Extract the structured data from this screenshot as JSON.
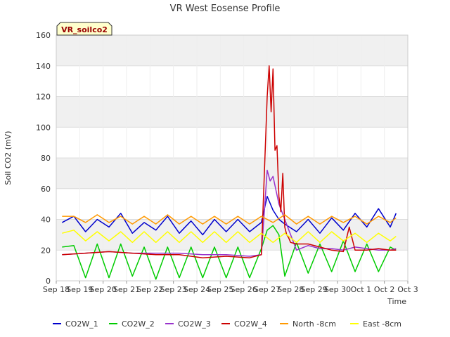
{
  "chart_data": {
    "type": "line",
    "title": "VR West Eosense Profile",
    "xlabel": "Time",
    "ylabel": "Soil CO2 (mV)",
    "badge": "VR_soilco2",
    "ylim": [
      0,
      160
    ],
    "yticks": [
      0,
      20,
      40,
      60,
      80,
      100,
      120,
      140,
      160
    ],
    "xlim": [
      "2024-09-18",
      "2024-10-03"
    ],
    "xticks": [
      {
        "date": "2024-09-18",
        "label": "Sep 18"
      },
      {
        "date": "2024-09-19",
        "label": "Sep 19"
      },
      {
        "date": "2024-09-20",
        "label": "Sep 20"
      },
      {
        "date": "2024-09-21",
        "label": "Sep 21"
      },
      {
        "date": "2024-09-22",
        "label": "Sep 22"
      },
      {
        "date": "2024-09-23",
        "label": "Sep 23"
      },
      {
        "date": "2024-09-24",
        "label": "Sep 24"
      },
      {
        "date": "2024-09-25",
        "label": "Sep 25"
      },
      {
        "date": "2024-09-26",
        "label": "Sep 26"
      },
      {
        "date": "2024-09-27",
        "label": "Sep 27"
      },
      {
        "date": "2024-09-28",
        "label": "Sep 28"
      },
      {
        "date": "2024-09-29",
        "label": "Sep 29"
      },
      {
        "date": "2024-09-30",
        "label": "Sep 30"
      },
      {
        "date": "2024-10-01",
        "label": "Oct 1"
      },
      {
        "date": "2024-10-02",
        "label": "Oct 2"
      },
      {
        "date": "2024-10-03",
        "label": "Oct 3"
      }
    ],
    "grid": true,
    "background_bands": true,
    "legend_position": "bottom",
    "series": [
      {
        "name": "CO2W_1",
        "color": "#0000cc",
        "x": [
          "2024-09-18 06:00",
          "2024-09-18 18:00",
          "2024-09-19 06:00",
          "2024-09-19 18:00",
          "2024-09-20 06:00",
          "2024-09-20 18:00",
          "2024-09-21 06:00",
          "2024-09-21 18:00",
          "2024-09-22 06:00",
          "2024-09-22 18:00",
          "2024-09-23 06:00",
          "2024-09-23 18:00",
          "2024-09-24 06:00",
          "2024-09-24 18:00",
          "2024-09-25 06:00",
          "2024-09-25 18:00",
          "2024-09-26 06:00",
          "2024-09-26 18:00",
          "2024-09-27 00:00",
          "2024-09-27 06:00",
          "2024-09-27 12:00",
          "2024-09-27 18:00",
          "2024-09-28 06:00",
          "2024-09-28 18:00",
          "2024-09-29 06:00",
          "2024-09-29 18:00",
          "2024-09-30 06:00",
          "2024-09-30 18:00",
          "2024-10-01 06:00",
          "2024-10-01 18:00",
          "2024-10-02 06:00",
          "2024-10-02 12:00"
        ],
        "values": [
          38,
          42,
          32,
          40,
          35,
          44,
          31,
          38,
          33,
          42,
          31,
          39,
          30,
          40,
          32,
          40,
          32,
          38,
          55,
          46,
          40,
          37,
          32,
          40,
          31,
          41,
          33,
          44,
          35,
          47,
          35,
          44
        ]
      },
      {
        "name": "CO2W_2",
        "color": "#00cc00",
        "x": [
          "2024-09-18 06:00",
          "2024-09-18 18:00",
          "2024-09-19 06:00",
          "2024-09-19 18:00",
          "2024-09-20 06:00",
          "2024-09-20 18:00",
          "2024-09-21 06:00",
          "2024-09-21 18:00",
          "2024-09-22 06:00",
          "2024-09-22 18:00",
          "2024-09-23 06:00",
          "2024-09-23 18:00",
          "2024-09-24 06:00",
          "2024-09-24 18:00",
          "2024-09-25 06:00",
          "2024-09-25 18:00",
          "2024-09-26 06:00",
          "2024-09-26 18:00",
          "2024-09-27 00:00",
          "2024-09-27 06:00",
          "2024-09-27 12:00",
          "2024-09-27 18:00",
          "2024-09-28 06:00",
          "2024-09-28 18:00",
          "2024-09-29 06:00",
          "2024-09-29 18:00",
          "2024-09-30 06:00",
          "2024-09-30 18:00",
          "2024-10-01 06:00",
          "2024-10-01 18:00",
          "2024-10-02 06:00",
          "2024-10-02 12:00"
        ],
        "values": [
          22,
          23,
          2,
          24,
          2,
          24,
          3,
          22,
          1,
          22,
          2,
          22,
          2,
          22,
          2,
          22,
          2,
          21,
          33,
          36,
          30,
          3,
          25,
          5,
          24,
          6,
          26,
          6,
          24,
          6,
          22,
          20
        ]
      },
      {
        "name": "CO2W_3",
        "color": "#9933cc",
        "x": [
          "2024-09-18 06:00",
          "2024-09-19 06:00",
          "2024-09-20 06:00",
          "2024-09-21 06:00",
          "2024-09-22 06:00",
          "2024-09-23 06:00",
          "2024-09-24 06:00",
          "2024-09-25 06:00",
          "2024-09-26 06:00",
          "2024-09-26 18:00",
          "2024-09-27 00:00",
          "2024-09-27 03:00",
          "2024-09-27 06:00",
          "2024-09-27 12:00",
          "2024-09-27 18:00",
          "2024-09-28 06:00",
          "2024-09-28 18:00",
          "2024-09-29 06:00",
          "2024-09-29 18:00",
          "2024-09-30 06:00",
          "2024-09-30 18:00",
          "2024-10-01 06:00",
          "2024-10-01 18:00",
          "2024-10-02 06:00",
          "2024-10-02 12:00"
        ],
        "values": [
          17,
          18,
          19,
          18,
          18,
          18,
          17,
          17,
          16,
          17,
          72,
          65,
          68,
          50,
          40,
          20,
          23,
          21,
          21,
          20,
          22,
          21,
          20,
          20,
          21
        ]
      },
      {
        "name": "CO2W_4",
        "color": "#cc0000",
        "x": [
          "2024-09-18 06:00",
          "2024-09-19 06:00",
          "2024-09-20 06:00",
          "2024-09-21 06:00",
          "2024-09-22 06:00",
          "2024-09-23 06:00",
          "2024-09-24 06:00",
          "2024-09-25 06:00",
          "2024-09-26 06:00",
          "2024-09-26 18:00",
          "2024-09-27 00:00",
          "2024-09-27 02:00",
          "2024-09-27 04:00",
          "2024-09-27 06:00",
          "2024-09-27 08:00",
          "2024-09-27 10:00",
          "2024-09-27 12:00",
          "2024-09-27 14:00",
          "2024-09-27 16:00",
          "2024-09-27 18:00",
          "2024-09-27 20:00",
          "2024-09-27 22:00",
          "2024-09-28 00:00",
          "2024-09-28 06:00",
          "2024-09-28 18:00",
          "2024-09-29 06:00",
          "2024-09-29 18:00",
          "2024-09-30 06:00",
          "2024-09-30 12:00",
          "2024-09-30 18:00",
          "2024-10-01 06:00",
          "2024-10-01 18:00",
          "2024-10-02 06:00",
          "2024-10-02 12:00"
        ],
        "values": [
          17,
          18,
          19,
          18,
          17,
          17,
          15,
          16,
          15,
          17,
          120,
          140,
          110,
          138,
          85,
          88,
          55,
          45,
          70,
          35,
          30,
          28,
          25,
          24,
          24,
          22,
          20,
          19,
          35,
          20,
          20,
          21,
          20,
          20
        ]
      },
      {
        "name": "North -8cm",
        "color": "#ff9900",
        "x": [
          "2024-09-18 06:00",
          "2024-09-18 18:00",
          "2024-09-19 06:00",
          "2024-09-19 18:00",
          "2024-09-20 06:00",
          "2024-09-20 18:00",
          "2024-09-21 06:00",
          "2024-09-21 18:00",
          "2024-09-22 06:00",
          "2024-09-22 18:00",
          "2024-09-23 06:00",
          "2024-09-23 18:00",
          "2024-09-24 06:00",
          "2024-09-24 18:00",
          "2024-09-25 06:00",
          "2024-09-25 18:00",
          "2024-09-26 06:00",
          "2024-09-26 18:00",
          "2024-09-27 06:00",
          "2024-09-27 18:00",
          "2024-09-28 06:00",
          "2024-09-28 18:00",
          "2024-09-29 06:00",
          "2024-09-29 18:00",
          "2024-09-30 06:00",
          "2024-09-30 18:00",
          "2024-10-01 06:00",
          "2024-10-01 18:00",
          "2024-10-02 06:00",
          "2024-10-02 12:00"
        ],
        "values": [
          42,
          42,
          38,
          43,
          38,
          42,
          37,
          42,
          37,
          43,
          37,
          42,
          37,
          42,
          37,
          42,
          37,
          42,
          38,
          43,
          37,
          42,
          37,
          42,
          38,
          42,
          37,
          42,
          38,
          41
        ]
      },
      {
        "name": "East -8cm",
        "color": "#ffff00",
        "x": [
          "2024-09-18 06:00",
          "2024-09-18 18:00",
          "2024-09-19 06:00",
          "2024-09-19 18:00",
          "2024-09-20 06:00",
          "2024-09-20 18:00",
          "2024-09-21 06:00",
          "2024-09-21 18:00",
          "2024-09-22 06:00",
          "2024-09-22 18:00",
          "2024-09-23 06:00",
          "2024-09-23 18:00",
          "2024-09-24 06:00",
          "2024-09-24 18:00",
          "2024-09-25 06:00",
          "2024-09-25 18:00",
          "2024-09-26 06:00",
          "2024-09-26 18:00",
          "2024-09-27 06:00",
          "2024-09-27 18:00",
          "2024-09-28 06:00",
          "2024-09-28 18:00",
          "2024-09-29 06:00",
          "2024-09-29 18:00",
          "2024-09-30 06:00",
          "2024-09-30 18:00",
          "2024-10-01 06:00",
          "2024-10-01 18:00",
          "2024-10-02 06:00",
          "2024-10-02 12:00"
        ],
        "values": [
          31,
          33,
          26,
          32,
          26,
          32,
          25,
          32,
          25,
          32,
          25,
          32,
          25,
          32,
          25,
          32,
          25,
          31,
          25,
          31,
          25,
          32,
          25,
          32,
          26,
          31,
          25,
          31,
          26,
          29
        ]
      }
    ]
  }
}
